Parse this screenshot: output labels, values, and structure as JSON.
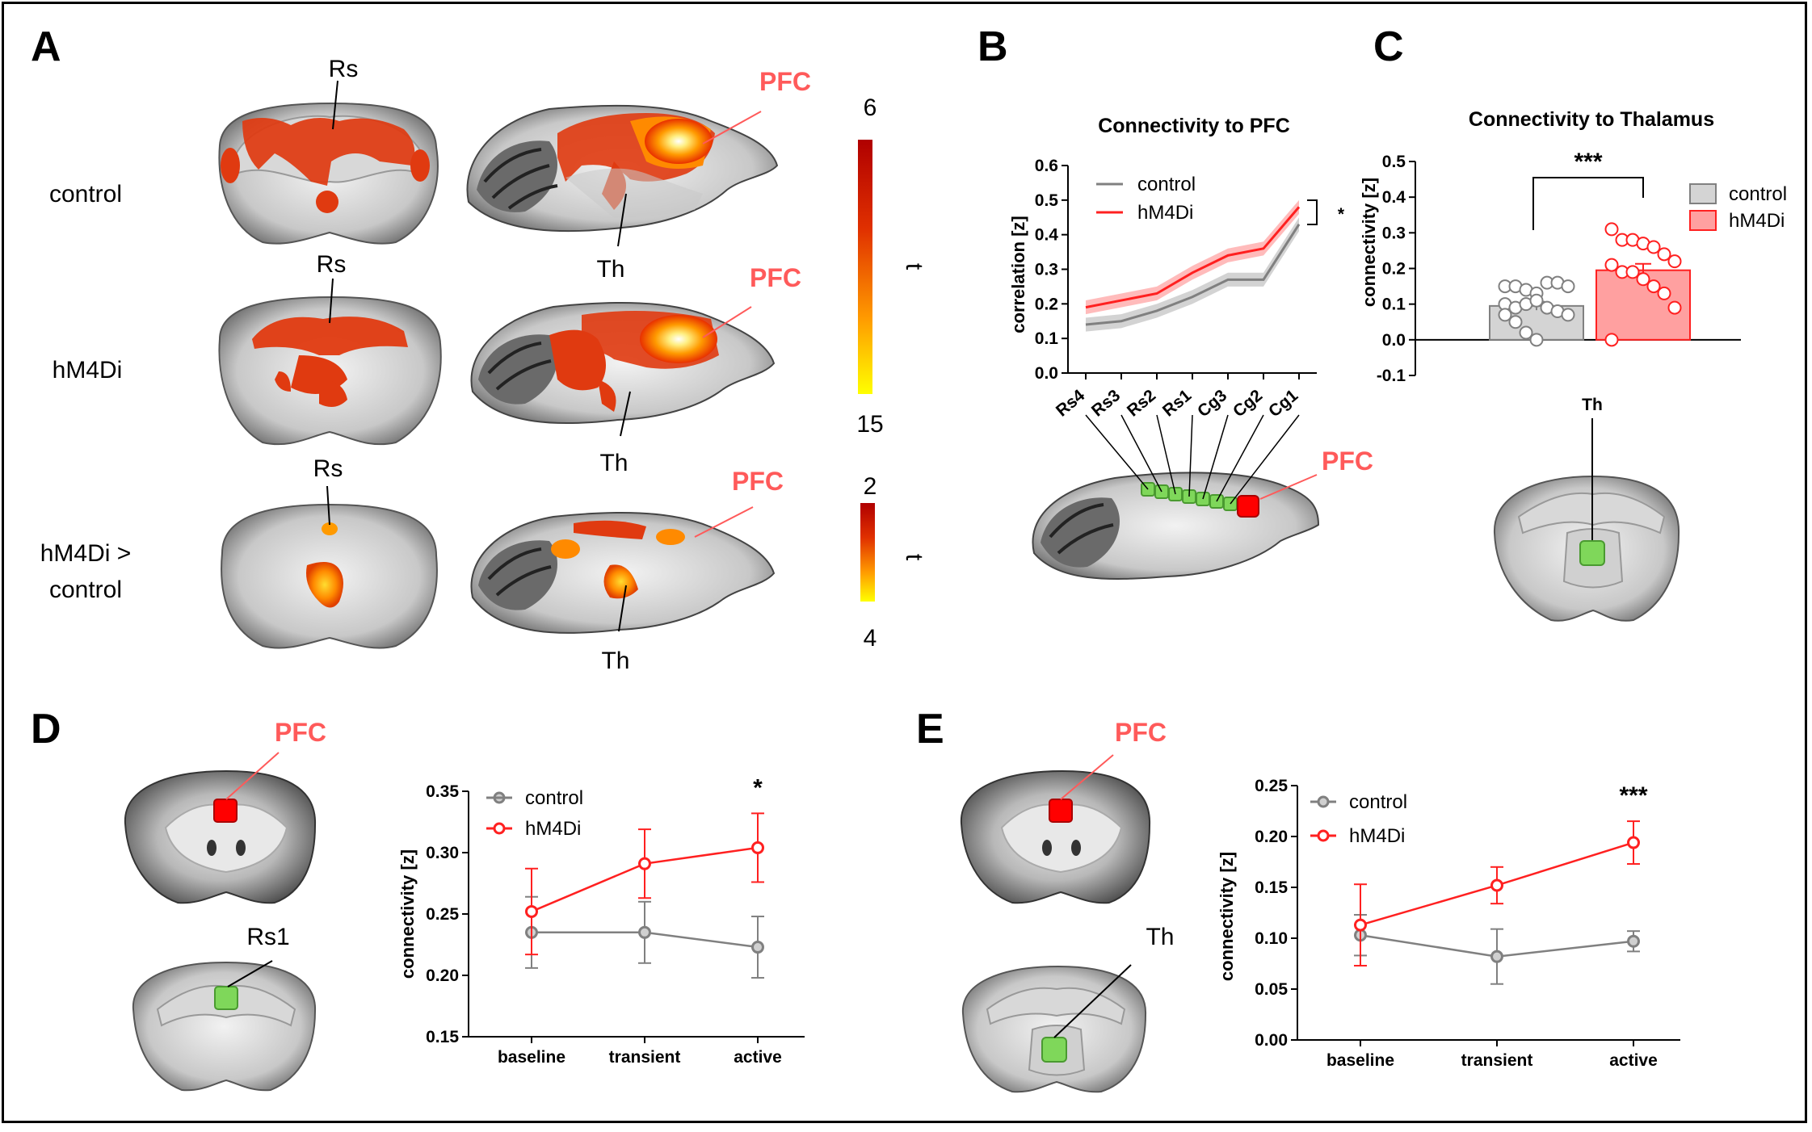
{
  "colors": {
    "control": "#808080",
    "hm4di": "#ff2020",
    "pfc_text": "#ff5a5a",
    "roi_green": "#7fd75a",
    "roi_red": "#ff0000"
  },
  "panel_a": {
    "label": "A",
    "row_labels": [
      "control",
      "hM4Di",
      "hM4Di >",
      "control"
    ],
    "rs_label": "Rs",
    "pfc_label": "PFC",
    "th_label": "Th",
    "colorbar1": {
      "top": "6",
      "bottom": "15",
      "symbol": "t"
    },
    "colorbar2": {
      "top": "2",
      "bottom": "4",
      "symbol": "t"
    }
  },
  "panel_b": {
    "label": "B",
    "pfc_label": "PFC",
    "chart_data": {
      "type": "line",
      "title": "Connectivity to PFC",
      "ylabel": "correlation [z]",
      "xlabel": "",
      "categories": [
        "Rs4",
        "Rs3",
        "Rs2",
        "Rs1",
        "Cg3",
        "Cg2",
        "Cg1"
      ],
      "ylim": [
        0.0,
        0.6
      ],
      "yticks": [
        "0.0",
        "0.1",
        "0.2",
        "0.3",
        "0.4",
        "0.5",
        "0.6"
      ],
      "series": [
        {
          "name": "control",
          "values": [
            0.14,
            0.15,
            0.18,
            0.22,
            0.27,
            0.27,
            0.43
          ],
          "sem": 0.02
        },
        {
          "name": "hM4Di",
          "values": [
            0.19,
            0.21,
            0.23,
            0.29,
            0.34,
            0.36,
            0.48
          ],
          "sem": 0.02
        }
      ],
      "significance": "*"
    }
  },
  "panel_c": {
    "label": "C",
    "th_label": "Th",
    "chart_data": {
      "type": "bar",
      "title": "Connectivity to Thalamus",
      "ylabel": "connectivity [z]",
      "categories": [
        "control",
        "hM4Di"
      ],
      "values": [
        0.095,
        0.195
      ],
      "sem": [
        0.012,
        0.018
      ],
      "ylim": [
        -0.1,
        0.5
      ],
      "yticks": [
        "-0.1",
        "0.0",
        "0.1",
        "0.2",
        "0.3",
        "0.4",
        "0.5"
      ],
      "points": {
        "control": [
          0.15,
          0.15,
          0.14,
          0.13,
          0.16,
          0.16,
          0.15,
          0.1,
          0.09,
          0.1,
          0.11,
          0.09,
          0.08,
          0.07,
          0.07,
          0.05,
          0.02,
          0.0
        ],
        "hM4Di": [
          0.31,
          0.28,
          0.28,
          0.27,
          0.26,
          0.24,
          0.22,
          0.21,
          0.19,
          0.19,
          0.17,
          0.15,
          0.13,
          0.09,
          0.0
        ]
      },
      "significance": "***"
    }
  },
  "panel_d": {
    "label": "D",
    "pfc_label": "PFC",
    "roi_label": "Rs1",
    "chart_data": {
      "type": "line",
      "title": "",
      "ylabel": "connectivity [z]",
      "categories": [
        "baseline",
        "transient",
        "active"
      ],
      "ylim": [
        0.15,
        0.35
      ],
      "yticks": [
        "0.15",
        "0.20",
        "0.25",
        "0.30",
        "0.35"
      ],
      "series": [
        {
          "name": "control",
          "values": [
            0.235,
            0.235,
            0.223
          ],
          "err": [
            0.029,
            0.025,
            0.025
          ]
        },
        {
          "name": "hM4Di",
          "values": [
            0.252,
            0.291,
            0.304
          ],
          "err": [
            0.035,
            0.028,
            0.028
          ]
        }
      ],
      "significance": [
        "",
        "",
        "*"
      ]
    }
  },
  "panel_e": {
    "label": "E",
    "pfc_label": "PFC",
    "roi_label": "Th",
    "chart_data": {
      "type": "line",
      "title": "",
      "ylabel": "connectivity [z]",
      "categories": [
        "baseline",
        "transient",
        "active"
      ],
      "ylim": [
        0.0,
        0.25
      ],
      "yticks": [
        "0.00",
        "0.05",
        "0.10",
        "0.15",
        "0.20",
        "0.25"
      ],
      "series": [
        {
          "name": "control",
          "values": [
            0.103,
            0.082,
            0.097
          ],
          "err": [
            0.02,
            0.027,
            0.01
          ]
        },
        {
          "name": "hM4Di",
          "values": [
            0.113,
            0.152,
            0.194
          ],
          "err": [
            0.04,
            0.018,
            0.021
          ]
        }
      ],
      "significance": [
        "",
        "",
        "***"
      ]
    }
  }
}
